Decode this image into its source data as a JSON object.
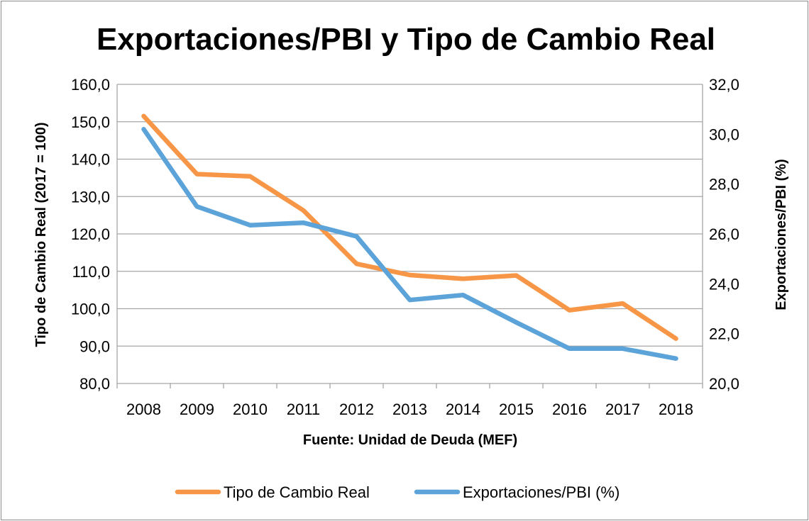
{
  "chart_data": {
    "type": "line",
    "title": "Exportaciones/PBI y Tipo de Cambio Real",
    "xlabel": "Fuente: Unidad de Deuda (MEF)",
    "ylabel_left": "Tipo de Cambio Real (2017 = 100)",
    "ylabel_right": "Exportaciones/PBI (%)",
    "x": [
      "2008",
      "2009",
      "2010",
      "2011",
      "2012",
      "2013",
      "2014",
      "2015",
      "2016",
      "2017",
      "2018"
    ],
    "ylim_left": [
      80,
      160
    ],
    "yticks_left": [
      "80,0",
      "90,0",
      "100,0",
      "110,0",
      "120,0",
      "130,0",
      "140,0",
      "150,0",
      "160,0"
    ],
    "ylim_right": [
      20,
      32
    ],
    "yticks_right": [
      "20,0",
      "22,0",
      "24,0",
      "26,0",
      "28,0",
      "30,0",
      "32,0"
    ],
    "grid": true,
    "legend_position": "bottom",
    "series": [
      {
        "name": "Tipo de Cambio Real",
        "axis": "left",
        "color": "#F79646",
        "values": [
          151.5,
          136.0,
          135.4,
          126.3,
          112.0,
          109.0,
          108.0,
          108.9,
          99.6,
          101.4,
          92.0
        ]
      },
      {
        "name": "Exportaciones/PBI (%)",
        "axis": "right",
        "color": "#5BA3D9",
        "values": [
          30.2,
          27.1,
          26.35,
          26.45,
          25.9,
          23.35,
          23.55,
          22.45,
          21.4,
          21.4,
          21.0
        ]
      }
    ]
  }
}
